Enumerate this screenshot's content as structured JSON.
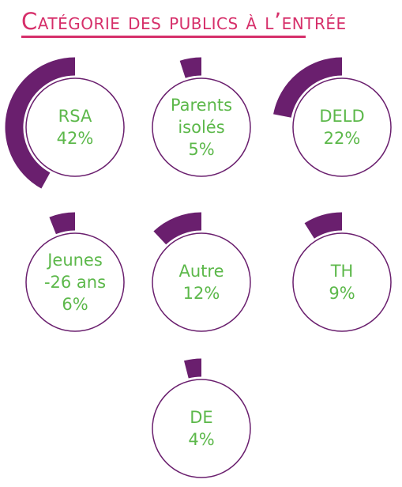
{
  "title": "Catégorie des publics à l’entrée",
  "colors": {
    "title": "#d62f6a",
    "arc": "#6a1f6e",
    "circle_stroke": "#6a1f6e",
    "label": "#5cb84a",
    "background": "#ffffff"
  },
  "chart_data": {
    "type": "pie",
    "title": "Catégorie des publics à l’entrée",
    "unit": "%",
    "categories": [
      {
        "lines": [
          "RSA"
        ],
        "value": 42,
        "display": "42%"
      },
      {
        "lines": [
          "Parents",
          "isolés"
        ],
        "value": 5,
        "display": "5%"
      },
      {
        "lines": [
          "DELD"
        ],
        "value": 22,
        "display": "22%"
      },
      {
        "lines": [
          "Jeunes",
          "-26 ans"
        ],
        "value": 6,
        "display": "6%"
      },
      {
        "lines": [
          "Autre"
        ],
        "value": 12,
        "display": "12%"
      },
      {
        "lines": [
          "TH"
        ],
        "value": 9,
        "display": "9%"
      },
      {
        "lines": [
          "DE"
        ],
        "value": 4,
        "display": "4%"
      }
    ]
  }
}
